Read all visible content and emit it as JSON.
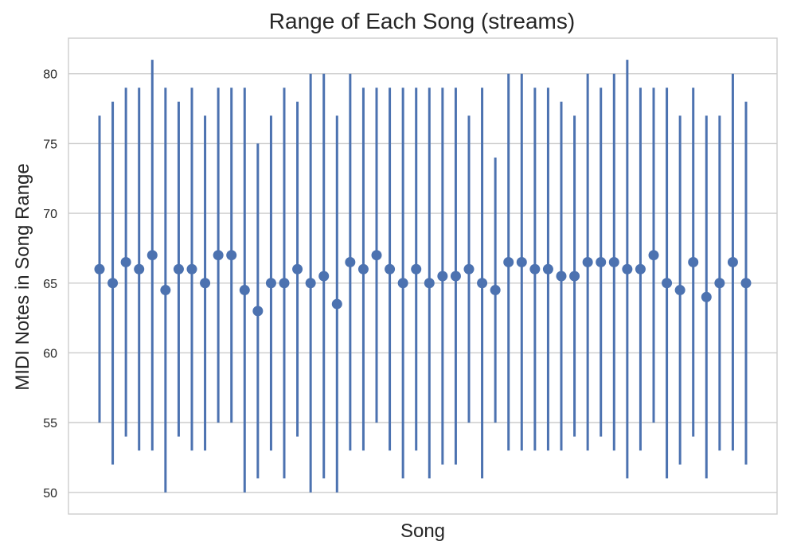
{
  "chart_data": {
    "type": "errorbar",
    "title": "Range of Each Song (streams)",
    "xlabel": "Song",
    "ylabel": "MIDI Notes in Song Range",
    "ylim": [
      48.45,
      82.55
    ],
    "yticks": [
      50,
      55,
      60,
      65,
      70,
      75,
      80
    ],
    "grid": true,
    "colors": {
      "series": "#4C72B0",
      "grid": "#CCCCCC",
      "frame": "#CCCCCC",
      "background": "#FFFFFF"
    },
    "series": [
      {
        "values": [
          66,
          65,
          66.5,
          66,
          67,
          64.5,
          66,
          66,
          65,
          67,
          67,
          64.5,
          63,
          65,
          65,
          66,
          65,
          65.5,
          63.5,
          66.5,
          66,
          67,
          66,
          65,
          66,
          65,
          65.5,
          65.5,
          66,
          65,
          64.5,
          66.5,
          66.5,
          66,
          66,
          65.5,
          65.5,
          66.5,
          66.5,
          66.5,
          66,
          66,
          67,
          65,
          64.5,
          66.5,
          64,
          65,
          66.5,
          65
        ],
        "min": [
          55,
          52,
          54,
          53,
          53,
          50,
          54,
          53,
          53,
          55,
          55,
          50,
          51,
          53,
          51,
          54,
          50,
          51,
          50,
          53,
          53,
          55,
          53,
          51,
          53,
          51,
          52,
          52,
          55,
          51,
          55,
          53,
          53,
          53,
          53,
          53,
          54,
          53,
          54,
          53,
          51,
          53,
          55,
          51,
          52,
          54,
          51,
          53,
          53,
          52
        ],
        "max": [
          77,
          78,
          79,
          79,
          81,
          79,
          78,
          79,
          77,
          79,
          79,
          79,
          75,
          77,
          79,
          78,
          80,
          80,
          77,
          80,
          79,
          79,
          79,
          79,
          79,
          79,
          79,
          79,
          77,
          79,
          74,
          80,
          80,
          79,
          79,
          78,
          77,
          80,
          79,
          80,
          81,
          79,
          79,
          79,
          77,
          79,
          77,
          77,
          80,
          78
        ]
      }
    ]
  }
}
